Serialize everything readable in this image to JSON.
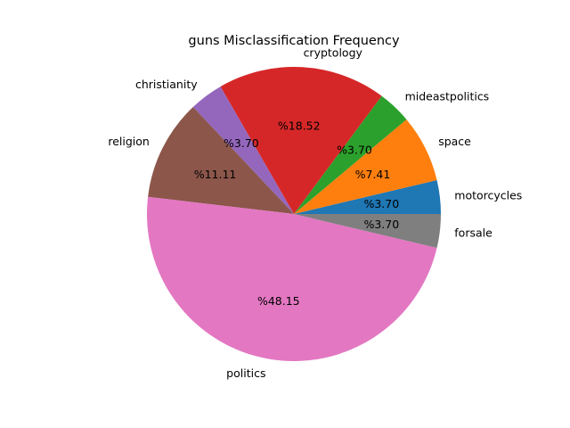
{
  "chart_data": {
    "type": "pie",
    "title": "guns Misclassification Frequency",
    "slices": [
      {
        "label": "motorcycles",
        "value": 3.7,
        "pct_label": "%3.70",
        "color": "#1f77b4"
      },
      {
        "label": "space",
        "value": 7.41,
        "pct_label": "%7.41",
        "color": "#ff7f0e"
      },
      {
        "label": "mideastpolitics",
        "value": 3.7,
        "pct_label": "%3.70",
        "color": "#2ca02c"
      },
      {
        "label": "cryptology",
        "value": 18.52,
        "pct_label": "%18.52",
        "color": "#d62728"
      },
      {
        "label": "christianity",
        "value": 3.7,
        "pct_label": "%3.70",
        "color": "#9467bd"
      },
      {
        "label": "religion",
        "value": 11.11,
        "pct_label": "%11.11",
        "color": "#8c564b"
      },
      {
        "label": "politics",
        "value": 48.15,
        "pct_label": "%48.15",
        "color": "#e377c2"
      },
      {
        "label": "forsale",
        "value": 3.7,
        "pct_label": "%3.70",
        "color": "#7f7f7f"
      }
    ],
    "start_angle_deg": 0,
    "direction": "counterclockwise",
    "legend": "none"
  }
}
